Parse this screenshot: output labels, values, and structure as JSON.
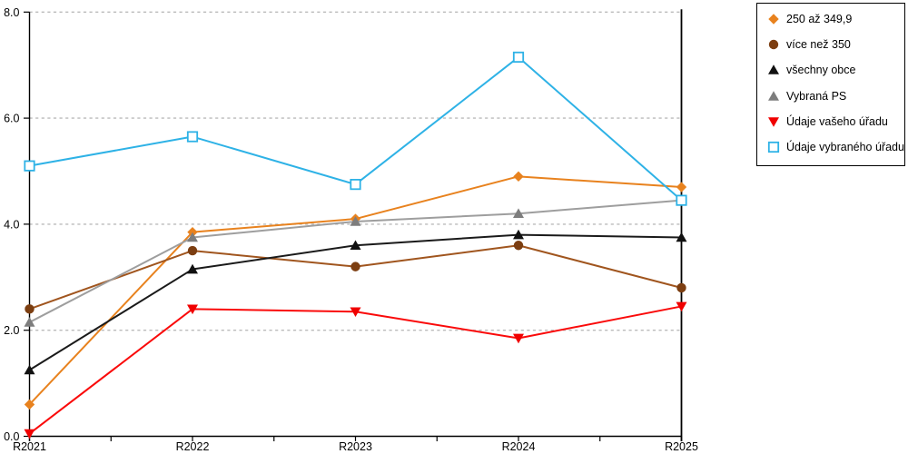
{
  "chart_data": {
    "type": "line",
    "title": "",
    "xlabel": "",
    "ylabel": "",
    "categories": [
      "R2021",
      "R2022",
      "R2023",
      "R2024",
      "R2025"
    ],
    "series": [
      {
        "name": "250 až 349,9",
        "marker": "diamond",
        "color": "#E8821E",
        "marker_color": "#E8821E",
        "values": [
          0.6,
          3.85,
          4.1,
          4.9,
          4.7
        ]
      },
      {
        "name": "více než 350",
        "marker": "circle",
        "color": "#A0551E",
        "marker_color": "#7C3E11",
        "values": [
          2.4,
          3.5,
          3.2,
          3.6,
          2.8
        ]
      },
      {
        "name": "všechny obce",
        "marker": "triangle-up",
        "color": "#1A1A1A",
        "marker_color": "#111111",
        "values": [
          1.25,
          3.15,
          3.6,
          3.8,
          3.75
        ]
      },
      {
        "name": "Vybraná PS",
        "marker": "triangle-up",
        "color": "#9E9E9E",
        "marker_color": "#7D7D7D",
        "values": [
          2.15,
          3.75,
          4.05,
          4.2,
          4.45
        ]
      },
      {
        "name": "Údaje vašeho úřadu",
        "marker": "triangle-down",
        "color": "#FA0A0A",
        "marker_color": "#F00000",
        "values": [
          0.05,
          2.4,
          2.35,
          1.85,
          2.45
        ]
      },
      {
        "name": "Údaje vybraného úřadu",
        "marker": "square-open",
        "color": "#2EB2E6",
        "marker_color": "#2EB2E6",
        "values": [
          5.1,
          5.65,
          4.75,
          7.15,
          4.45
        ]
      }
    ],
    "ylim": [
      0,
      8
    ],
    "yticks": [
      "0.0",
      "2.0",
      "4.0",
      "6.0",
      "8.0"
    ],
    "grid": "horizontal-dashed",
    "gridline_color": "#BBBBBB",
    "axis_color": "#000000",
    "legend_position": "outside-top-right",
    "legend_border_color": "#000000",
    "background_color": "#FFFFFF"
  }
}
